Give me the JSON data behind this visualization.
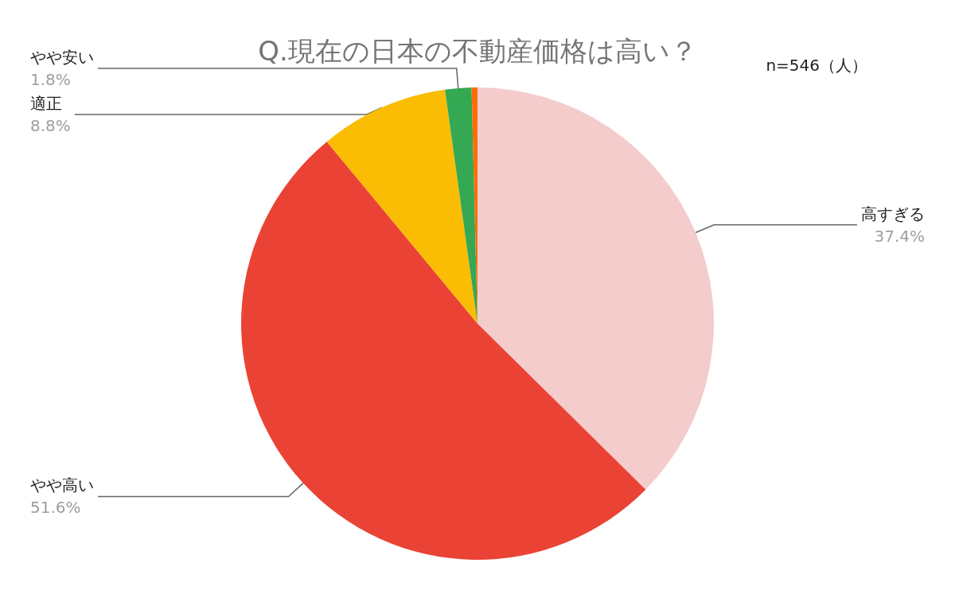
{
  "chart_data": {
    "type": "pie",
    "title": "Q.現在の日本の不動産価格は高い？",
    "annotations": [
      "n=546（人）"
    ],
    "categories": [
      "高すぎる",
      "やや高い",
      "適正",
      "やや安い",
      null
    ],
    "values": [
      37.4,
      51.6,
      8.8,
      1.8,
      0.4
    ],
    "value_labels": [
      "37.4%",
      "51.6%",
      "8.8%",
      "1.8%",
      null
    ],
    "colors": [
      "#f4cccc",
      "#ea4335",
      "#fbbc04",
      "#34a853",
      "#ff6d01"
    ]
  }
}
